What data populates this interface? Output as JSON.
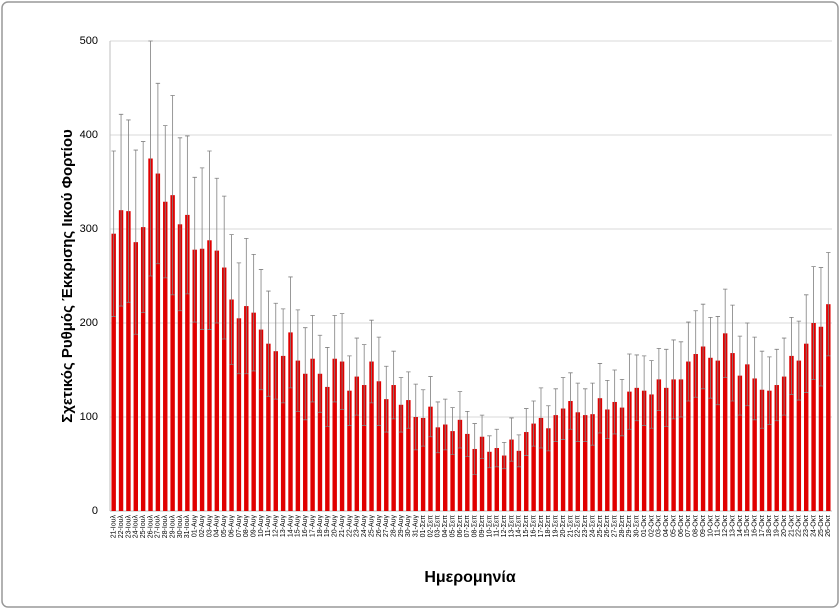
{
  "chart_data": {
    "type": "bar",
    "y_label": "Σχετικός Ρυθμός Έκκρισης Ιικού Φορτίου",
    "x_label": "Ημερομηνία",
    "color": "#e00000",
    "error_color": "#808080",
    "grid": true,
    "ylim": [
      0,
      500
    ],
    "yticks": [
      0,
      100,
      200,
      300,
      400,
      500
    ],
    "categories": [
      "21-Ιουλ",
      "22-Ιουλ",
      "23-Ιουλ",
      "24-Ιουλ",
      "25-Ιουλ",
      "26-Ιουλ",
      "27-Ιουλ",
      "28-Ιουλ",
      "29-Ιουλ",
      "30-Ιουλ",
      "31-Ιουλ",
      "01-Αυγ",
      "02-Αυγ",
      "03-Αυγ",
      "04-Αυγ",
      "05-Αυγ",
      "06-Αυγ",
      "07-Αυγ",
      "08-Αυγ",
      "09-Αυγ",
      "10-Αυγ",
      "11-Αυγ",
      "12-Αυγ",
      "13-Αυγ",
      "14-Αυγ",
      "15-Αυγ",
      "16-Αυγ",
      "17-Αυγ",
      "18-Αυγ",
      "19-Αυγ",
      "20-Αυγ",
      "21-Αυγ",
      "22-Αυγ",
      "23-Αυγ",
      "24-Αυγ",
      "25-Αυγ",
      "26-Αυγ",
      "27-Αυγ",
      "28-Αυγ",
      "29-Αυγ",
      "30-Αυγ",
      "31-Αυγ",
      "01-Σεπ",
      "02-Σεπ",
      "03-Σεπ",
      "04-Σεπ",
      "05-Σεπ",
      "06-Σεπ",
      "07-Σεπ",
      "08-Σεπ",
      "09-Σεπ",
      "10-Σεπ",
      "11-Σεπ",
      "12-Σεπ",
      "13-Σεπ",
      "14-Σεπ",
      "15-Σεπ",
      "16-Σεπ",
      "17-Σεπ",
      "18-Σεπ",
      "19-Σεπ",
      "20-Σεπ",
      "21-Σεπ",
      "22-Σεπ",
      "23-Σεπ",
      "24-Σεπ",
      "25-Σεπ",
      "26-Σεπ",
      "27-Σεπ",
      "28-Σεπ",
      "29-Σεπ",
      "30-Σεπ",
      "01-Οκτ",
      "02-Οκτ",
      "03-Οκτ",
      "04-Οκτ",
      "05-Οκτ",
      "06-Οκτ",
      "07-Οκτ",
      "08-Οκτ",
      "09-Οκτ",
      "10-Οκτ",
      "11-Οκτ",
      "12-Οκτ",
      "13-Οκτ",
      "14-Οκτ",
      "15-Οκτ",
      "16-Οκτ",
      "17-Οκτ",
      "18-Οκτ",
      "19-Οκτ",
      "20-Οκτ",
      "21-Οκτ",
      "22-Οκτ",
      "23-Οκτ",
      "24-Οκτ",
      "25-Οκτ",
      "26-Οκτ"
    ],
    "values": [
      295,
      320,
      319,
      286,
      302,
      375,
      359,
      329,
      336,
      305,
      315,
      278,
      279,
      288,
      277,
      259,
      225,
      205,
      218,
      211,
      193,
      178,
      170,
      165,
      190,
      160,
      146,
      162,
      146,
      132,
      162,
      159,
      128,
      143,
      134,
      159,
      138,
      119,
      134,
      113,
      118,
      100,
      99,
      111,
      89,
      92,
      85,
      97,
      82,
      66,
      79,
      63,
      67,
      59,
      76,
      64,
      84,
      93,
      99,
      88,
      102,
      109,
      117,
      105,
      102,
      103,
      120,
      108,
      116,
      110,
      127,
      131,
      128,
      124,
      140,
      131,
      140,
      140,
      159,
      167,
      175,
      163,
      160,
      189,
      168,
      144,
      156,
      141,
      129,
      128,
      134,
      143,
      165,
      160,
      178,
      200,
      196,
      220
    ],
    "errors": [
      88,
      102,
      97,
      98,
      91,
      125,
      96,
      81,
      106,
      92,
      84,
      77,
      86,
      95,
      77,
      76,
      69,
      59,
      72,
      62,
      64,
      56,
      51,
      50,
      59,
      54,
      49,
      46,
      41,
      42,
      46,
      51,
      37,
      41,
      43,
      44,
      47,
      35,
      36,
      29,
      30,
      35,
      30,
      32,
      27,
      27,
      25,
      30,
      24,
      27,
      23,
      17,
      20,
      14,
      23,
      17,
      25,
      24,
      32,
      24,
      28,
      33,
      30,
      31,
      28,
      33,
      37,
      31,
      34,
      30,
      40,
      35,
      37,
      36,
      33,
      41,
      42,
      40,
      42,
      46,
      45,
      43,
      47,
      47,
      51,
      42,
      44,
      44,
      41,
      36,
      38,
      41,
      41,
      42,
      52,
      60,
      63,
      55
    ]
  }
}
